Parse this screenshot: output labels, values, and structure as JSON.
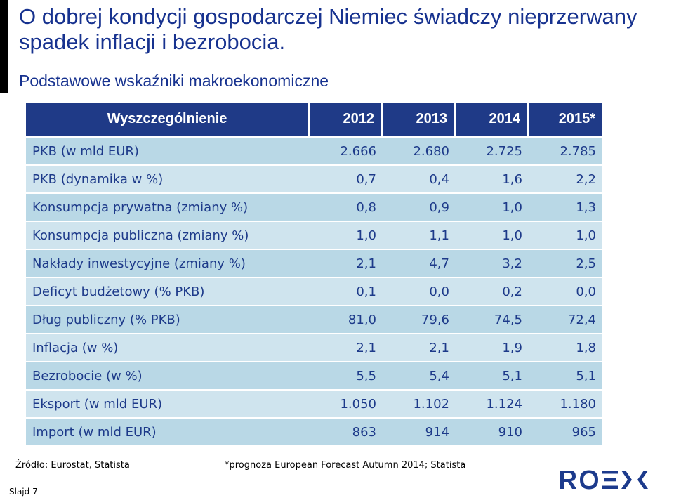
{
  "title": "O dobrej kondycji gospodarczej Niemiec świadczy nieprzerwany spadek inflacji i bezrobocia.",
  "subtitle": "Podstawowe wskaźniki makroekonomiczne",
  "table": {
    "headers": [
      "Wyszczególnienie",
      "2012",
      "2013",
      "2014",
      "2015*"
    ],
    "rows": [
      {
        "label": "PKB (w mld EUR)",
        "values": [
          "2.666",
          "2.680",
          "2.725",
          "2.785"
        ]
      },
      {
        "label": "PKB (dynamika w %)",
        "values": [
          "0,7",
          "0,4",
          "1,6",
          "2,2"
        ]
      },
      {
        "label": "Konsumpcja prywatna (zmiany %)",
        "values": [
          "0,8",
          "0,9",
          "1,0",
          "1,3"
        ]
      },
      {
        "label": "Konsumpcja publiczna (zmiany %)",
        "values": [
          "1,0",
          "1,1",
          "1,0",
          "1,0"
        ]
      },
      {
        "label": "Nakłady inwestycyjne (zmiany %)",
        "values": [
          "2,1",
          "4,7",
          "3,2",
          "2,5"
        ]
      },
      {
        "label": "Deficyt budżetowy (% PKB)",
        "values": [
          "0,1",
          "0,0",
          "0,2",
          "0,0"
        ]
      },
      {
        "label": "Dług publiczny (% PKB)",
        "values": [
          "81,0",
          "79,6",
          "74,5",
          "72,4"
        ]
      },
      {
        "label": "Inflacja (w %)",
        "values": [
          "2,1",
          "2,1",
          "1,9",
          "1,8"
        ]
      },
      {
        "label": "Bezrobocie (w %)",
        "values": [
          "5,5",
          "5,4",
          "5,1",
          "5,1"
        ]
      },
      {
        "label": "Eksport (w mld EUR)",
        "values": [
          "1.050",
          "1.102",
          "1.124",
          "1.180"
        ]
      },
      {
        "label": "Import (w mld EUR)",
        "values": [
          "863",
          "914",
          "910",
          "965"
        ]
      }
    ]
  },
  "source": "Źródło: Eurostat, Statista",
  "footnote": "*prognoza European Forecast Autumn 2014; Statista",
  "slide_number": "Slajd 7",
  "logo_text": "ROEX",
  "colors": {
    "header_bg": "#1f3a87",
    "row_odd": "#cfe4ee",
    "row_even": "#b9d8e6",
    "text": "#1d3a8a",
    "logo": "#1c3a8c"
  }
}
